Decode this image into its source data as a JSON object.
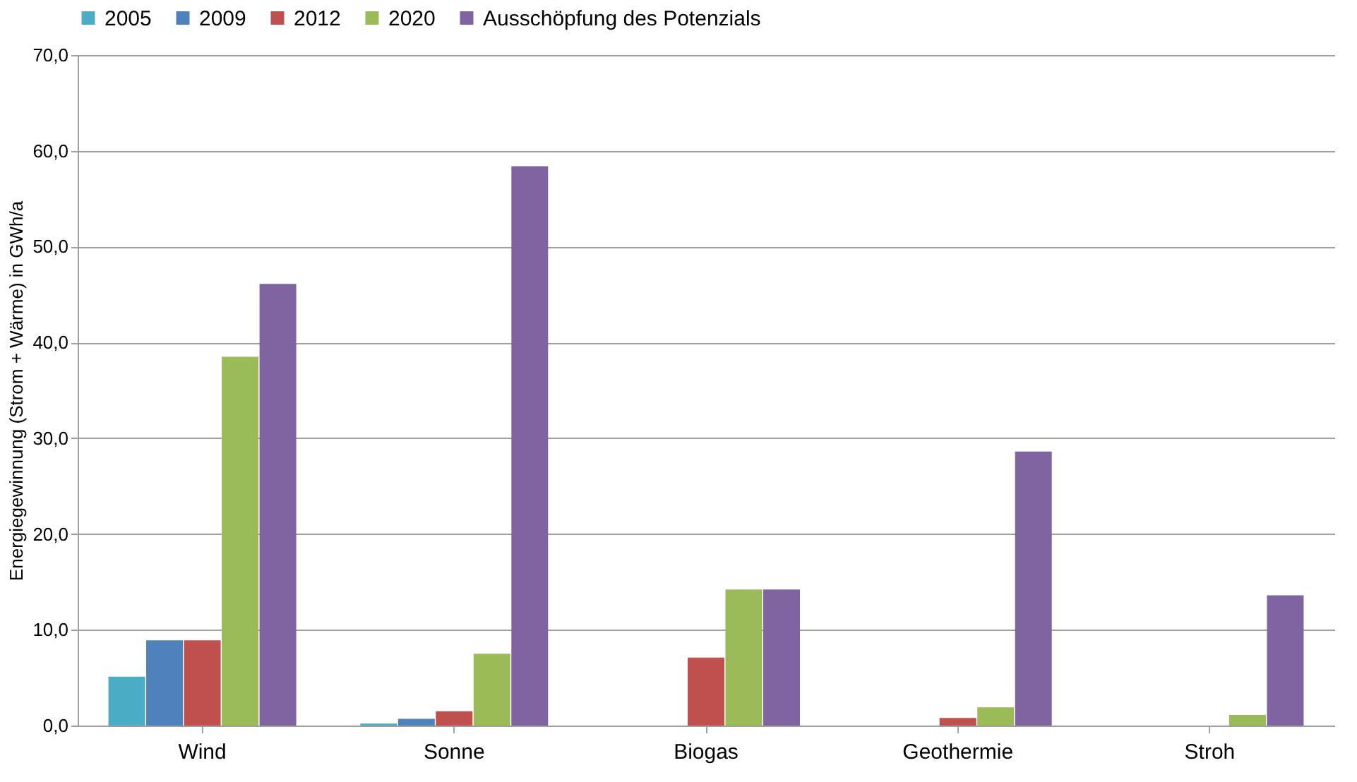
{
  "chart_data": {
    "type": "bar",
    "ylabel": "Energiegewinnung (Strom + Wärme)  in GWh/a",
    "categories": [
      "Wind",
      "Sonne",
      "Biogas",
      "Geothermie",
      "Stroh"
    ],
    "series": [
      {
        "name": "2005",
        "color": "#4bacc6",
        "values": [
          5.1,
          0.2,
          null,
          null,
          null
        ]
      },
      {
        "name": "2009",
        "color": "#4f81bd",
        "values": [
          8.9,
          0.7,
          null,
          null,
          null
        ]
      },
      {
        "name": "2012",
        "color": "#c0504d",
        "values": [
          8.9,
          1.5,
          7.1,
          0.8,
          null
        ]
      },
      {
        "name": "2020",
        "color": "#9bbb59",
        "values": [
          38.5,
          7.5,
          14.2,
          1.9,
          1.1
        ]
      },
      {
        "name": "Ausschöpfung des Potenzials",
        "color": "#8064a2",
        "values": [
          46.1,
          58.4,
          14.2,
          28.6,
          13.6
        ]
      }
    ],
    "ylim": [
      0,
      70
    ],
    "yticks": [
      {
        "value": 0,
        "label": "0,0"
      },
      {
        "value": 10,
        "label": "10,0"
      },
      {
        "value": 20,
        "label": "20,0"
      },
      {
        "value": 30,
        "label": "30,0"
      },
      {
        "value": 40,
        "label": "40,0"
      },
      {
        "value": 50,
        "label": "50,0"
      },
      {
        "value": 60,
        "label": "60,0"
      },
      {
        "value": 70,
        "label": "70,0"
      }
    ],
    "grid": "y",
    "legend": "top"
  }
}
